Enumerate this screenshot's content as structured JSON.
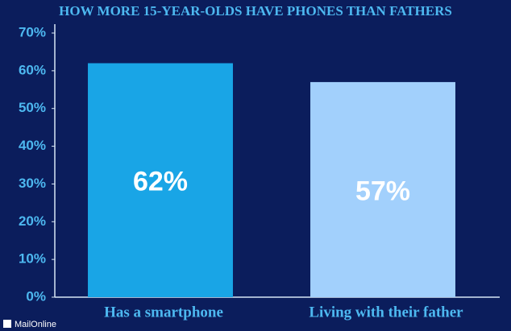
{
  "chart_data": {
    "type": "bar",
    "title": "HOW MORE 15-YEAR-OLDS HAVE PHONES THAN FATHERS",
    "categories": [
      "Has a smartphone",
      "Living with their father"
    ],
    "values": [
      62,
      57
    ],
    "value_labels": [
      "62%",
      "57%"
    ],
    "colors": [
      "#19a5e6",
      "#a2d0fc"
    ],
    "ylim": [
      0,
      70
    ],
    "yticks": [
      {
        "value": 0,
        "label": "0%"
      },
      {
        "value": 10,
        "label": "10%"
      },
      {
        "value": 20,
        "label": "20%"
      },
      {
        "value": 30,
        "label": "30%"
      },
      {
        "value": 40,
        "label": "40%"
      },
      {
        "value": 50,
        "label": "50%"
      },
      {
        "value": 60,
        "label": "60%"
      },
      {
        "value": 70,
        "label": "70%"
      }
    ],
    "grid": false,
    "source": "MailOnline"
  }
}
